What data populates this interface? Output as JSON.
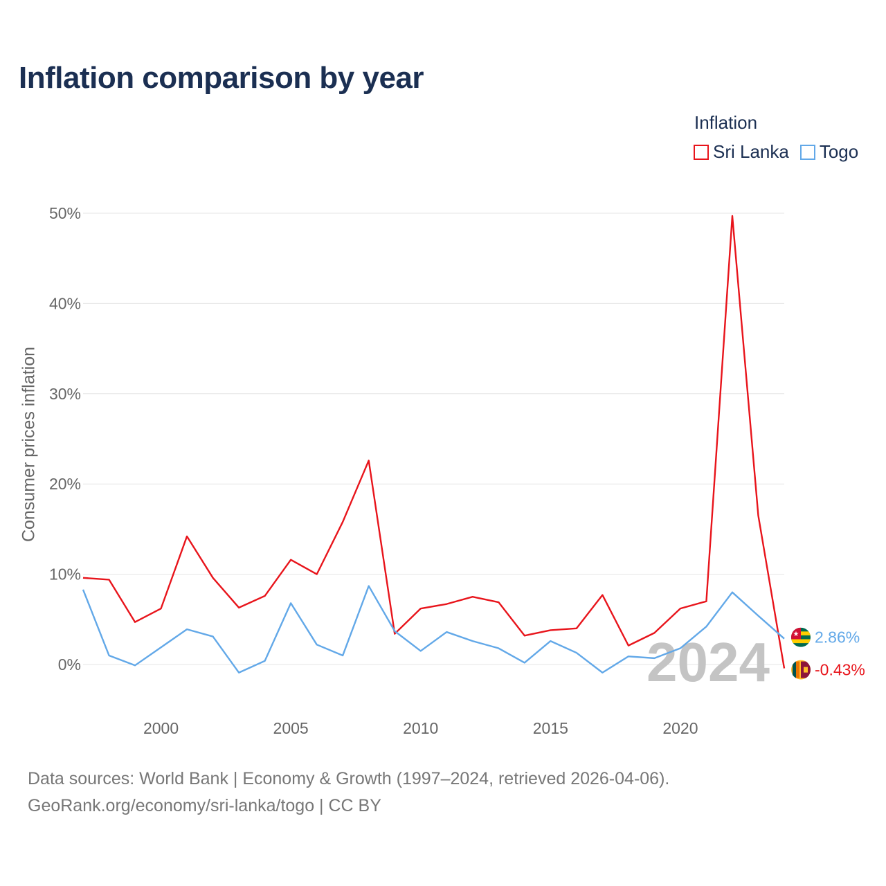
{
  "title": "Inflation comparison by year",
  "legend": {
    "title": "Inflation",
    "items": [
      {
        "label": "Sri Lanka",
        "color": "#e8141b"
      },
      {
        "label": "Togo",
        "color": "#62a8e8"
      }
    ]
  },
  "footer": {
    "line1": "Data sources: World Bank | Economy & Growth (1997–2024, retrieved 2026-04-06).",
    "line2": "GeoRank.org/economy/sri-lanka/togo | CC BY"
  },
  "chart_data": {
    "type": "line",
    "title": "Inflation comparison by year",
    "xlabel": "",
    "ylabel": "Consumer prices inflation",
    "xlim": [
      1997,
      2024
    ],
    "ylim": [
      0,
      50
    ],
    "yticks": [
      0,
      10,
      20,
      30,
      40,
      50
    ],
    "ytick_labels": [
      "0%",
      "10%",
      "20%",
      "30%",
      "40%",
      "50%"
    ],
    "xticks": [
      2000,
      2005,
      2010,
      2015,
      2020
    ],
    "xtick_labels": [
      "2000",
      "2005",
      "2010",
      "2015",
      "2020"
    ],
    "grid": true,
    "year_watermark": "2024",
    "x": [
      1997,
      1998,
      1999,
      2000,
      2001,
      2002,
      2003,
      2004,
      2005,
      2006,
      2007,
      2008,
      2009,
      2010,
      2011,
      2012,
      2013,
      2014,
      2015,
      2016,
      2017,
      2018,
      2019,
      2020,
      2021,
      2022,
      2023,
      2024
    ],
    "series": [
      {
        "name": "Sri Lanka",
        "color": "#e8141b",
        "end_label": "-0.43%",
        "values": [
          9.6,
          9.4,
          4.7,
          6.2,
          14.2,
          9.6,
          6.3,
          7.6,
          11.6,
          10.0,
          15.8,
          22.6,
          3.4,
          6.2,
          6.7,
          7.5,
          6.9,
          3.2,
          3.8,
          4.0,
          7.7,
          2.1,
          3.5,
          6.2,
          7.0,
          49.7,
          16.5,
          -0.43
        ]
      },
      {
        "name": "Togo",
        "color": "#62a8e8",
        "end_label": "2.86%",
        "values": [
          8.3,
          1.0,
          -0.1,
          1.9,
          3.9,
          3.1,
          -0.9,
          0.4,
          6.8,
          2.2,
          1.0,
          8.7,
          3.7,
          1.5,
          3.6,
          2.6,
          1.8,
          0.2,
          2.6,
          1.3,
          -0.9,
          0.9,
          0.7,
          1.8,
          4.2,
          8.0,
          5.4,
          2.86
        ]
      }
    ]
  }
}
